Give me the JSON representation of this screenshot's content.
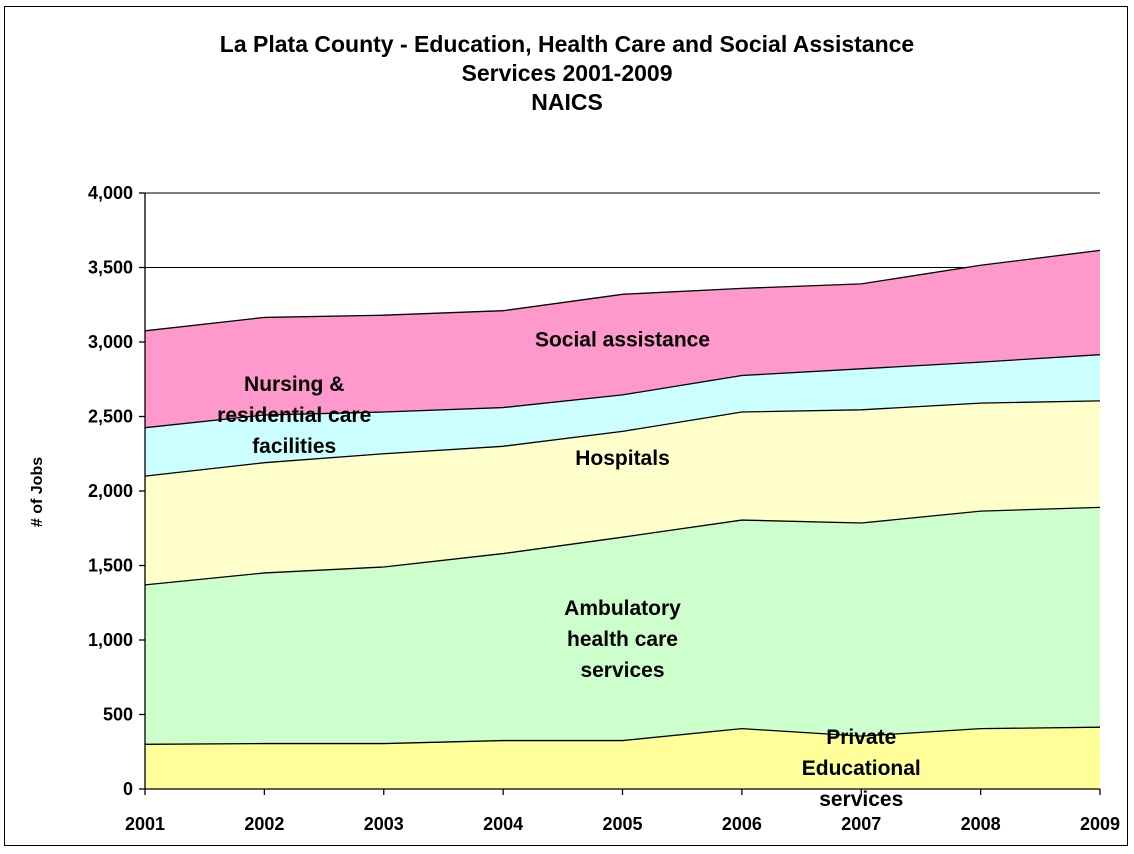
{
  "chart_data": {
    "type": "area",
    "stacked": true,
    "title_lines": [
      "La Plata County - Education, Health Care and Social Assistance",
      "Services 2001-2009",
      "NAICS"
    ],
    "xlabel": "",
    "ylabel": "# of Jobs",
    "categories": [
      "2001",
      "2002",
      "2003",
      "2004",
      "2005",
      "2006",
      "2007",
      "2008",
      "2009"
    ],
    "ylim": [
      0,
      4000
    ],
    "yticks": [
      0,
      500,
      1000,
      1500,
      2000,
      2500,
      3000,
      3500,
      4000
    ],
    "ytick_labels": [
      "0",
      "500",
      "1,000",
      "1,500",
      "2,000",
      "2,500",
      "3,000",
      "3,500",
      "4,000"
    ],
    "grid": "horizontal",
    "legend": "none (labels placed inside areas)",
    "series": [
      {
        "name": "Private Educational services",
        "label_lines": [
          "Private",
          "Educational",
          "services"
        ],
        "color": "#FFFF99",
        "values": [
          300,
          305,
          305,
          325,
          325,
          405,
          355,
          405,
          415
        ]
      },
      {
        "name": "Ambulatory health care services",
        "label_lines": [
          "Ambulatory",
          "health care",
          "services"
        ],
        "color": "#CCFFCC",
        "values": [
          1070,
          1145,
          1185,
          1255,
          1365,
          1400,
          1430,
          1460,
          1475
        ]
      },
      {
        "name": "Hospitals",
        "label_lines": [
          "Hospitals"
        ],
        "color": "#FFFFCC",
        "values": [
          730,
          740,
          760,
          720,
          710,
          725,
          760,
          725,
          715
        ]
      },
      {
        "name": "Nursing & residential care facilities",
        "label_lines": [
          "Nursing &",
          "residential care",
          "facilities"
        ],
        "color": "#CCFFFF",
        "values": [
          325,
          320,
          280,
          260,
          245,
          245,
          275,
          275,
          310
        ]
      },
      {
        "name": "Social assistance",
        "label_lines": [
          "Social assistance"
        ],
        "color": "#FF99CC",
        "values": [
          650,
          655,
          650,
          650,
          675,
          585,
          570,
          650,
          700
        ]
      }
    ]
  }
}
